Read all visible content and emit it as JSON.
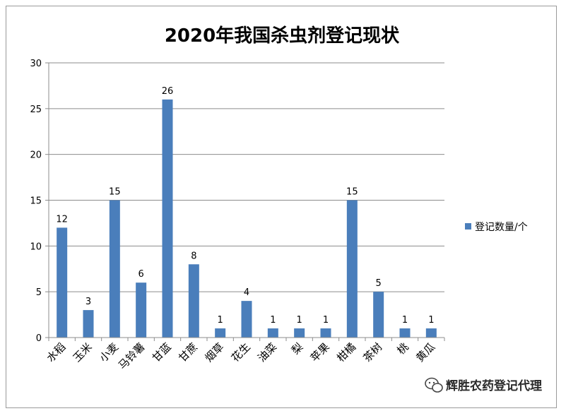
{
  "chart_data": {
    "type": "bar",
    "title": "2020年我国杀虫剂登记现状",
    "categories": [
      "水稻",
      "玉米",
      "小麦",
      "马铃薯",
      "甘蓝",
      "甘蔗",
      "烟草",
      "花生",
      "油菜",
      "梨",
      "苹果",
      "柑橘",
      "茶树",
      "桃",
      "黄瓜"
    ],
    "series": [
      {
        "name": "登记数量/个",
        "values": [
          12,
          3,
          15,
          6,
          26,
          8,
          1,
          4,
          1,
          1,
          1,
          15,
          5,
          1,
          1
        ]
      }
    ],
    "ylim": [
      0,
      30
    ],
    "yticks": [
      0,
      5,
      10,
      15,
      20,
      25,
      30
    ],
    "grid": true,
    "legend_position": "right",
    "bar_color": "#4a7ebb"
  },
  "watermark": {
    "text": "辉胜农药登记代理",
    "icon": "wechat-icon"
  }
}
